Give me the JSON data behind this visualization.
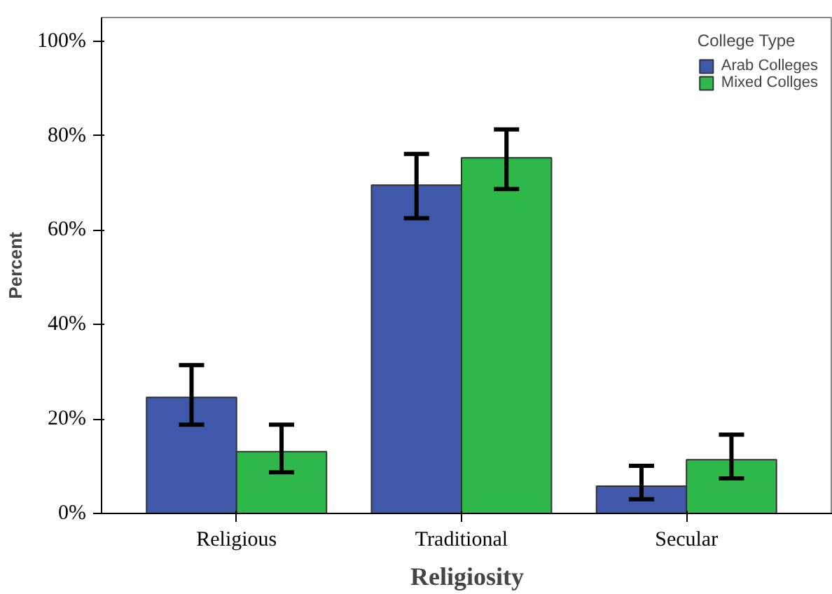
{
  "chart_data": {
    "type": "bar",
    "xlabel": "Religiosity",
    "ylabel": "Percent",
    "legend_title": "College Type",
    "categories": [
      "Religious",
      "Traditional",
      "Secular"
    ],
    "series": [
      {
        "name": "Arab Colleges",
        "color": "#3f58aa",
        "values": [
          24.6,
          69.5,
          5.8
        ],
        "errors": [
          [
            18.8,
            31.4
          ],
          [
            62.5,
            76.1
          ],
          [
            3.0,
            10.1
          ]
        ]
      },
      {
        "name": "Mixed Collges",
        "color": "#2eb84a",
        "values": [
          13.1,
          75.3,
          11.4
        ],
        "errors": [
          [
            8.7,
            18.8
          ],
          [
            68.7,
            81.3
          ],
          [
            7.4,
            16.7
          ]
        ]
      }
    ],
    "ylim": [
      0,
      105
    ],
    "yticks": [
      {
        "value": 0,
        "label": "0%"
      },
      {
        "value": 20,
        "label": "20%"
      },
      {
        "value": 40,
        "label": "40%"
      },
      {
        "value": 60,
        "label": "60%"
      },
      {
        "value": 80,
        "label": "80%"
      },
      {
        "value": 100,
        "label": "100%"
      }
    ],
    "grid": false,
    "legend": "top right"
  }
}
